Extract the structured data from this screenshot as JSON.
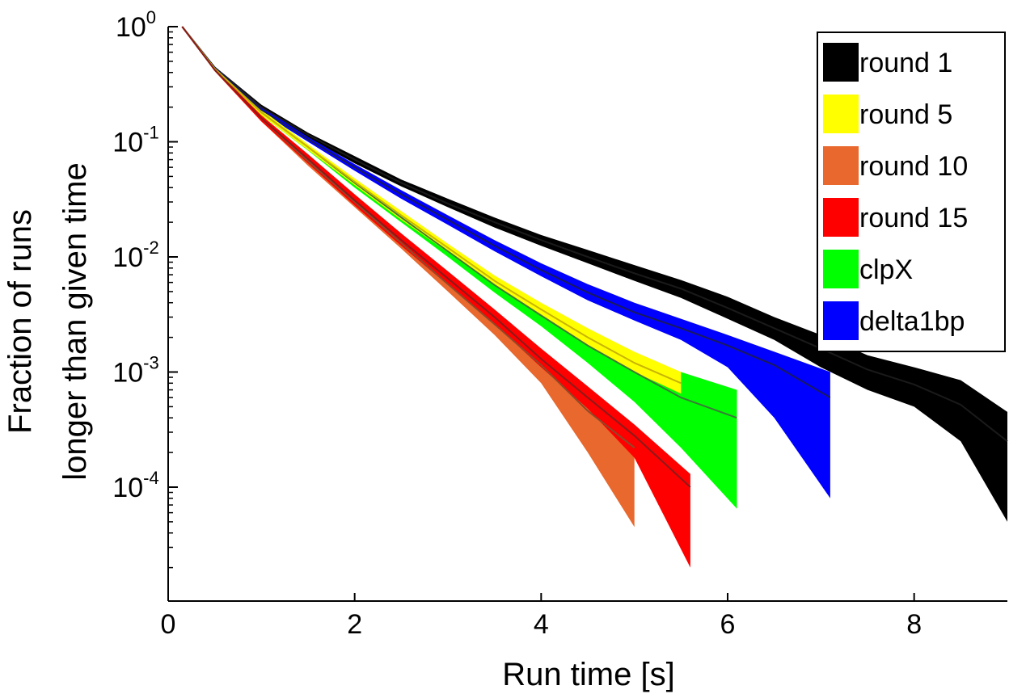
{
  "chart_data": {
    "type": "area",
    "xlabel": "Run time [s]",
    "ylabel_lines": [
      "Fraction of runs",
      "longer than given time"
    ],
    "xlim": [
      0,
      9
    ],
    "ylim": [
      1e-05,
      1
    ],
    "yscale": "log",
    "xticks": [
      0,
      2,
      4,
      6,
      8
    ],
    "yticks": [
      {
        "value": 1,
        "base": "10",
        "exp": "0"
      },
      {
        "value": 0.1,
        "base": "10",
        "exp": "-1"
      },
      {
        "value": 0.01,
        "base": "10",
        "exp": "-2"
      },
      {
        "value": 0.001,
        "base": "10",
        "exp": "-3"
      },
      {
        "value": 0.0001,
        "base": "10",
        "exp": "-4"
      }
    ],
    "legend_position": "top-right",
    "series": [
      {
        "name": "round 1",
        "color": "#000000",
        "line_color": "#1a1a1a",
        "x": [
          0.15,
          0.5,
          1.0,
          1.5,
          2.0,
          2.5,
          3.0,
          3.5,
          4.0,
          4.5,
          5.0,
          5.5,
          6.0,
          6.5,
          7.0,
          7.5,
          8.0,
          8.5,
          9.0
        ],
        "upper": [
          1.0,
          0.45,
          0.21,
          0.12,
          0.075,
          0.047,
          0.032,
          0.022,
          0.0155,
          0.0115,
          0.0085,
          0.0063,
          0.0045,
          0.003,
          0.0021,
          0.0014,
          0.0011,
          0.00085,
          0.00045
        ],
        "mid": [
          1.0,
          0.44,
          0.2,
          0.115,
          0.07,
          0.044,
          0.029,
          0.02,
          0.014,
          0.01,
          0.0072,
          0.0053,
          0.0036,
          0.0024,
          0.0016,
          0.00105,
          0.00078,
          0.00052,
          0.00025
        ],
        "lower": [
          1.0,
          0.43,
          0.19,
          0.108,
          0.065,
          0.041,
          0.027,
          0.018,
          0.0125,
          0.0088,
          0.0062,
          0.0044,
          0.0029,
          0.0019,
          0.0011,
          0.0007,
          0.0005,
          0.00025,
          5e-05
        ]
      },
      {
        "name": "round 5",
        "color": "#ffff00",
        "line_color": "#c8b400",
        "x": [
          0.15,
          0.5,
          1.0,
          1.5,
          2.0,
          2.5,
          3.0,
          3.5,
          4.0,
          4.5,
          5.0,
          5.5
        ],
        "upper": [
          1.0,
          0.44,
          0.19,
          0.095,
          0.048,
          0.025,
          0.013,
          0.0069,
          0.004,
          0.0024,
          0.0015,
          0.001
        ],
        "mid": [
          1.0,
          0.43,
          0.18,
          0.09,
          0.045,
          0.023,
          0.012,
          0.0062,
          0.0035,
          0.002,
          0.0012,
          0.0008
        ],
        "lower": [
          1.0,
          0.42,
          0.17,
          0.085,
          0.042,
          0.021,
          0.011,
          0.0056,
          0.0031,
          0.0017,
          0.001,
          0.00065
        ]
      },
      {
        "name": "round 10",
        "color": "#e8682d",
        "line_color": "#8b4a2a",
        "x": [
          0.15,
          0.5,
          1.0,
          1.5,
          2.0,
          2.5,
          3.0,
          3.5,
          4.0,
          4.5,
          5.0
        ],
        "upper": [
          1.0,
          0.43,
          0.17,
          0.075,
          0.033,
          0.015,
          0.0068,
          0.0031,
          0.0015,
          0.0006,
          0.0003
        ],
        "mid": [
          1.0,
          0.42,
          0.16,
          0.068,
          0.03,
          0.0132,
          0.0058,
          0.0026,
          0.00115,
          0.00046,
          0.00022
        ],
        "lower": [
          1.0,
          0.41,
          0.15,
          0.062,
          0.027,
          0.0118,
          0.005,
          0.0021,
          0.0008,
          0.0002,
          4.5e-05
        ]
      },
      {
        "name": "round 15",
        "color": "#ff0000",
        "line_color": "#8b1a1a",
        "x": [
          0.15,
          0.5,
          1.0,
          1.5,
          2.0,
          2.5,
          3.0,
          3.5,
          4.0,
          4.5,
          5.0,
          5.6
        ],
        "upper": [
          1.0,
          0.43,
          0.17,
          0.078,
          0.035,
          0.016,
          0.0075,
          0.0035,
          0.0016,
          0.00075,
          0.00035,
          0.00013
        ],
        "mid": [
          1.0,
          0.42,
          0.16,
          0.071,
          0.031,
          0.014,
          0.0065,
          0.003,
          0.0013,
          0.0006,
          0.00028,
          0.0001
        ],
        "lower": [
          1.0,
          0.41,
          0.15,
          0.065,
          0.028,
          0.0125,
          0.0057,
          0.0026,
          0.0011,
          0.00048,
          0.00018,
          2e-05
        ]
      },
      {
        "name": "clpX",
        "color": "#00ff00",
        "line_color": "#3a7a3a",
        "x": [
          0.15,
          0.5,
          1.0,
          1.5,
          2.0,
          2.5,
          3.0,
          3.5,
          4.0,
          4.5,
          5.0,
          5.5,
          6.1
        ],
        "upper": [
          1.0,
          0.44,
          0.19,
          0.095,
          0.047,
          0.024,
          0.0125,
          0.0065,
          0.0037,
          0.0022,
          0.0014,
          0.001,
          0.0007
        ],
        "mid": [
          1.0,
          0.43,
          0.18,
          0.09,
          0.044,
          0.022,
          0.0112,
          0.0057,
          0.0031,
          0.0017,
          0.001,
          0.0006,
          0.0004
        ],
        "lower": [
          1.0,
          0.42,
          0.17,
          0.084,
          0.04,
          0.02,
          0.01,
          0.0049,
          0.0025,
          0.0012,
          0.00055,
          0.00022,
          6.5e-05
        ]
      },
      {
        "name": "delta1bp",
        "color": "#0000ff",
        "line_color": "#1a1a5a",
        "x": [
          0.15,
          0.5,
          1.0,
          1.5,
          2.0,
          2.5,
          3.0,
          3.5,
          4.0,
          4.5,
          5.0,
          5.5,
          6.0,
          6.5,
          7.1
        ],
        "upper": [
          1.0,
          0.45,
          0.2,
          0.11,
          0.064,
          0.038,
          0.023,
          0.014,
          0.0088,
          0.0058,
          0.004,
          0.0029,
          0.0021,
          0.0015,
          0.001
        ],
        "mid": [
          1.0,
          0.44,
          0.19,
          0.105,
          0.06,
          0.035,
          0.021,
          0.0125,
          0.0077,
          0.0049,
          0.0033,
          0.0024,
          0.0017,
          0.00115,
          0.0006
        ],
        "lower": [
          1.0,
          0.43,
          0.18,
          0.1,
          0.056,
          0.032,
          0.019,
          0.0112,
          0.0068,
          0.0042,
          0.0028,
          0.0019,
          0.0011,
          0.0004,
          8e-05
        ]
      }
    ]
  }
}
